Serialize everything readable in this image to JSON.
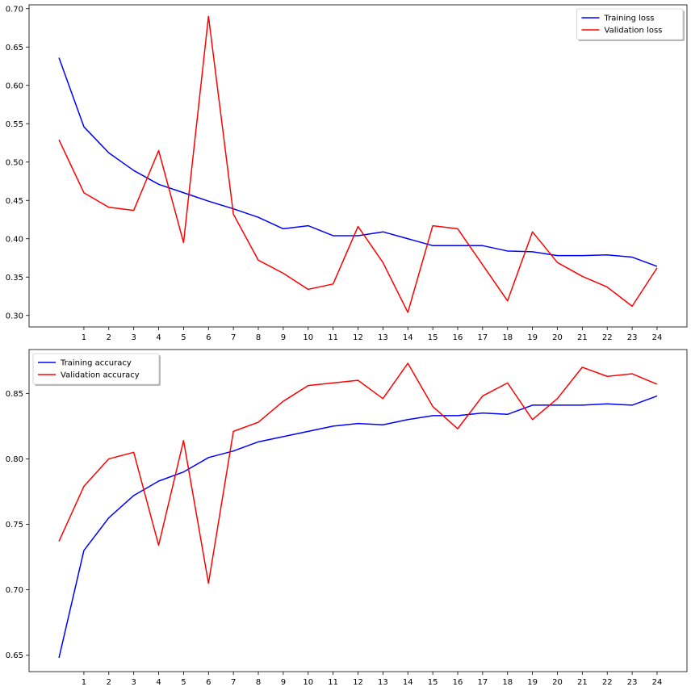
{
  "chart_data": [
    {
      "type": "line",
      "x": [
        0,
        1,
        2,
        3,
        4,
        5,
        6,
        7,
        8,
        9,
        10,
        11,
        12,
        13,
        14,
        15,
        16,
        17,
        18,
        19,
        20,
        21,
        22,
        23,
        24
      ],
      "xticks": [
        "1",
        "2",
        "3",
        "4",
        "5",
        "6",
        "7",
        "8",
        "9",
        "10",
        "11",
        "12",
        "13",
        "14",
        "15",
        "16",
        "17",
        "18",
        "19",
        "20",
        "21",
        "22",
        "23",
        "24"
      ],
      "yticks": [
        "0.30",
        "0.35",
        "0.40",
        "0.45",
        "0.50",
        "0.55",
        "0.60",
        "0.65",
        "0.70"
      ],
      "ylim": [
        0.285,
        0.705
      ],
      "xlim": [
        -1.2,
        25.2
      ],
      "grid": false,
      "legend_position": "upper right",
      "series": [
        {
          "name": "Training loss",
          "color": "#0000ff",
          "values": [
            0.636,
            0.546,
            0.512,
            0.489,
            0.471,
            0.46,
            0.449,
            0.439,
            0.428,
            0.413,
            0.417,
            0.404,
            0.404,
            0.409,
            0.4,
            0.391,
            0.391,
            0.391,
            0.384,
            0.383,
            0.378,
            0.378,
            0.379,
            0.376,
            0.364
          ]
        },
        {
          "name": "Validation loss",
          "color": "#ff0000",
          "values": [
            0.529,
            0.46,
            0.441,
            0.437,
            0.515,
            0.395,
            0.69,
            0.432,
            0.372,
            0.355,
            0.334,
            0.341,
            0.416,
            0.369,
            0.304,
            0.417,
            0.413,
            0.366,
            0.319,
            0.409,
            0.369,
            0.351,
            0.337,
            0.312,
            0.362
          ]
        }
      ]
    },
    {
      "type": "line",
      "x": [
        0,
        1,
        2,
        3,
        4,
        5,
        6,
        7,
        8,
        9,
        10,
        11,
        12,
        13,
        14,
        15,
        16,
        17,
        18,
        19,
        20,
        21,
        22,
        23,
        24
      ],
      "xticks": [
        "1",
        "2",
        "3",
        "4",
        "5",
        "6",
        "7",
        "8",
        "9",
        "10",
        "11",
        "12",
        "13",
        "14",
        "15",
        "16",
        "17",
        "18",
        "19",
        "20",
        "21",
        "22",
        "23",
        "24"
      ],
      "yticks": [
        "0.65",
        "0.70",
        "0.75",
        "0.80",
        "0.85"
      ],
      "ylim": [
        0.6375,
        0.8835
      ],
      "xlim": [
        -1.2,
        25.2
      ],
      "grid": false,
      "legend_position": "upper left",
      "series": [
        {
          "name": "Training accuracy",
          "color": "#0000ff",
          "values": [
            0.648,
            0.73,
            0.755,
            0.772,
            0.783,
            0.79,
            0.801,
            0.806,
            0.813,
            0.817,
            0.821,
            0.825,
            0.827,
            0.826,
            0.83,
            0.833,
            0.833,
            0.835,
            0.834,
            0.841,
            0.841,
            0.841,
            0.842,
            0.841,
            0.848
          ]
        },
        {
          "name": "Validation accuracy",
          "color": "#ff0000",
          "values": [
            0.737,
            0.779,
            0.8,
            0.805,
            0.734,
            0.814,
            0.705,
            0.821,
            0.828,
            0.844,
            0.856,
            0.858,
            0.86,
            0.846,
            0.873,
            0.84,
            0.823,
            0.848,
            0.858,
            0.83,
            0.846,
            0.87,
            0.863,
            0.865,
            0.857
          ]
        }
      ]
    }
  ]
}
